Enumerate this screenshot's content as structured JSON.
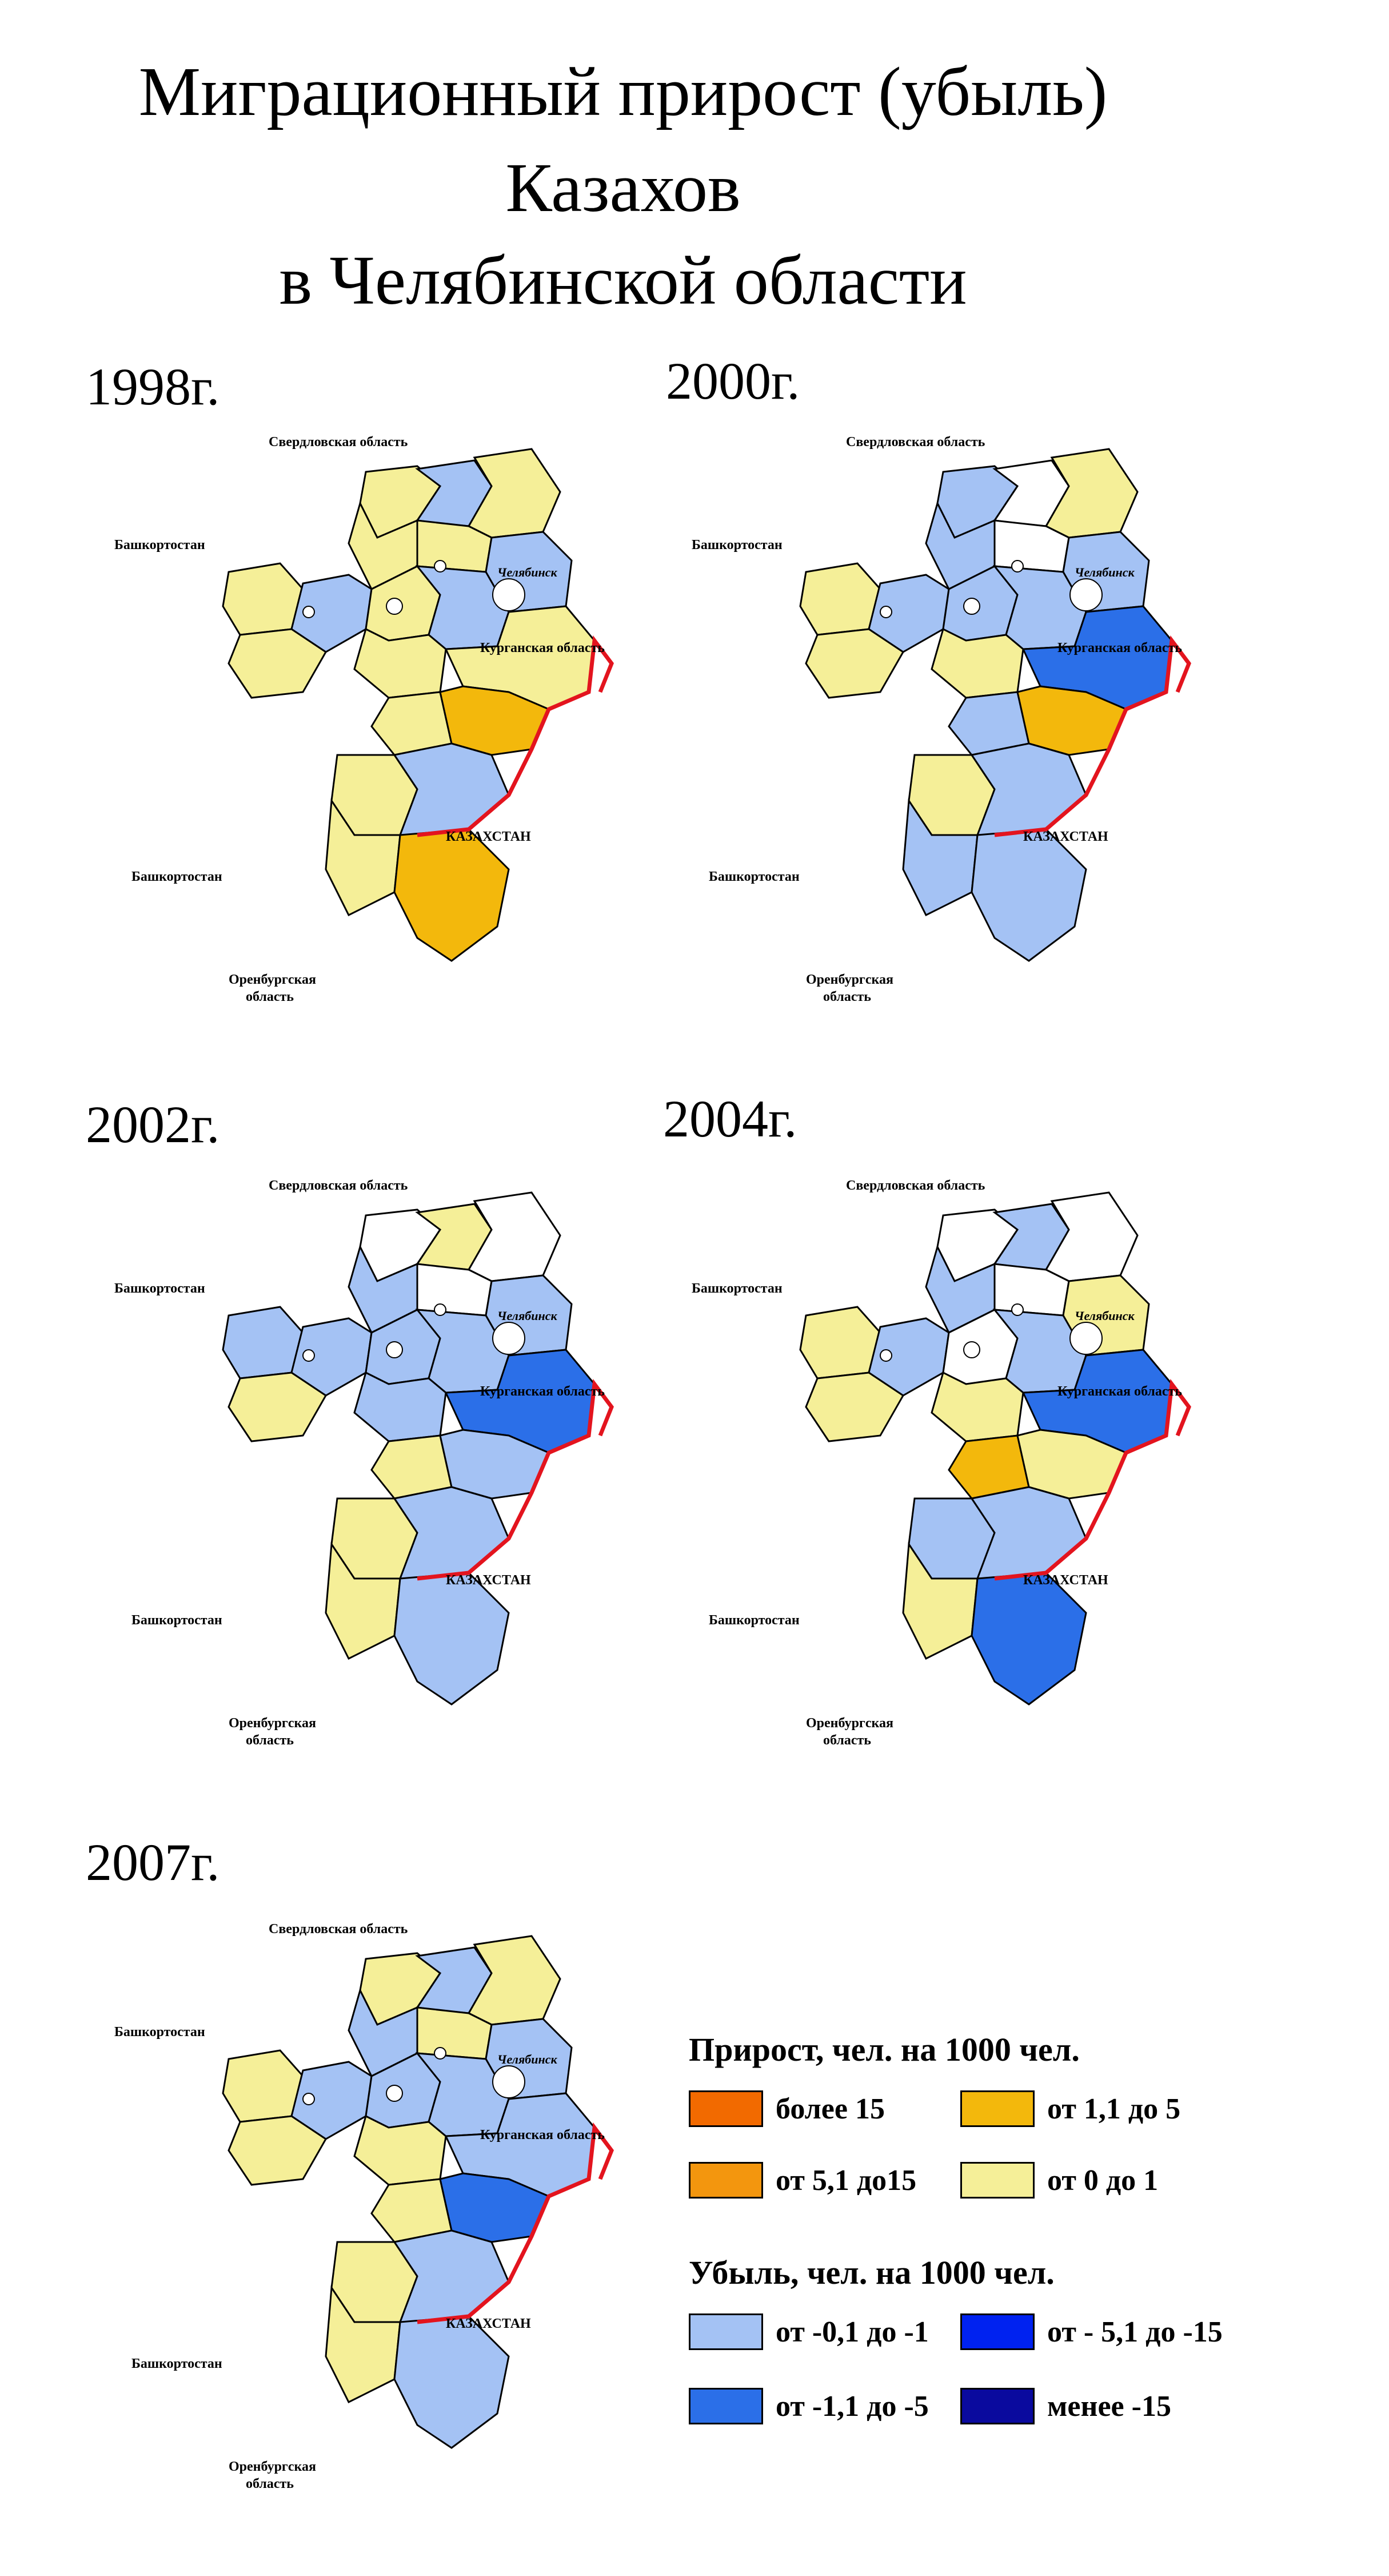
{
  "title": {
    "line1": "Миграционный прирост (убыль)",
    "line2": "Казахов",
    "line3": "в Челябинской области"
  },
  "neighbor_labels": {
    "sverdlovsk": "Свердловская область",
    "bashkortostan": "Башкортостан",
    "kurgan": "Курганская область",
    "kazakhstan": "КАЗАХСТАН",
    "orenburg_line1": "Оренбургская",
    "orenburg_line2": "область",
    "chelyabinsk_city": "Челябинск"
  },
  "colors": {
    "gain_more_15": "#f26a00",
    "gain_5_15": "#f3960e",
    "gain_1_5": "#f3b80c",
    "gain_0_1": "#f5ef98",
    "loss_0_1": "#a4c2f4",
    "loss_1_5": "#2b6fe8",
    "loss_5_15": "#0022f0",
    "loss_less_15": "#0a0a9e",
    "no_data": "#ffffff",
    "kz_border": "#e3141e"
  },
  "maps": [
    {
      "year": "1998г.",
      "fills": [
        "gain_0_1",
        "loss_0_1",
        "gain_0_1",
        "gain_0_1",
        "gain_0_1",
        "loss_0_1",
        "gain_0_1",
        "loss_0_1",
        "gain_0_1",
        "gain_0_1",
        "loss_0_1",
        "gain_0_1",
        "gain_0_1",
        "gain_0_1",
        "gain_1_5",
        "gain_0_1",
        "loss_0_1",
        "gain_0_1",
        "gain_1_5"
      ]
    },
    {
      "year": "2000г.",
      "fills": [
        "loss_0_1",
        "no_data",
        "gain_0_1",
        "loss_0_1",
        "no_data",
        "loss_0_1",
        "gain_0_1",
        "loss_0_1",
        "gain_0_1",
        "loss_0_1",
        "loss_0_1",
        "gain_0_1",
        "loss_0_1",
        "loss_1_5",
        "gain_1_5",
        "gain_0_1",
        "loss_0_1",
        "loss_0_1",
        "loss_0_1"
      ]
    },
    {
      "year": "2002г.",
      "fills": [
        "no_data",
        "gain_0_1",
        "no_data",
        "loss_0_1",
        "no_data",
        "loss_0_1",
        "loss_0_1",
        "loss_0_1",
        "gain_0_1",
        "loss_0_1",
        "loss_0_1",
        "loss_0_1",
        "gain_0_1",
        "loss_1_5",
        "loss_0_1",
        "gain_0_1",
        "loss_0_1",
        "gain_0_1",
        "loss_0_1"
      ]
    },
    {
      "year": "2004г.",
      "fills": [
        "no_data",
        "loss_0_1",
        "no_data",
        "loss_0_1",
        "no_data",
        "gain_0_1",
        "gain_0_1",
        "loss_0_1",
        "gain_0_1",
        "no_data",
        "loss_0_1",
        "gain_0_1",
        "gain_1_5",
        "loss_1_5",
        "gain_0_1",
        "loss_0_1",
        "loss_0_1",
        "gain_0_1",
        "loss_1_5"
      ]
    },
    {
      "year": "2007г.",
      "fills": [
        "gain_0_1",
        "loss_0_1",
        "gain_0_1",
        "loss_0_1",
        "gain_0_1",
        "loss_0_1",
        "gain_0_1",
        "loss_0_1",
        "gain_0_1",
        "loss_0_1",
        "loss_0_1",
        "gain_0_1",
        "gain_0_1",
        "loss_0_1",
        "loss_1_5",
        "gain_0_1",
        "loss_0_1",
        "gain_0_1",
        "loss_0_1"
      ]
    }
  ],
  "legend": {
    "gain_title": "Прирост, чел. на 1000 чел.",
    "loss_title": "Убыль, чел. на 1000 чел.",
    "items": [
      {
        "label": "более 15",
        "color_key": "gain_more_15"
      },
      {
        "label": "от 1,1 до 5",
        "color_key": "gain_1_5"
      },
      {
        "label": "от 5,1 до15",
        "color_key": "gain_5_15"
      },
      {
        "label": "от 0 до 1",
        "color_key": "gain_0_1"
      },
      {
        "label": "от -0,1 до -1",
        "color_key": "loss_0_1"
      },
      {
        "label": "от - 5,1 до -15",
        "color_key": "loss_5_15"
      },
      {
        "label": "от -1,1 до -5",
        "color_key": "loss_1_5"
      },
      {
        "label": "менее -15",
        "color_key": "loss_less_15"
      }
    ]
  }
}
